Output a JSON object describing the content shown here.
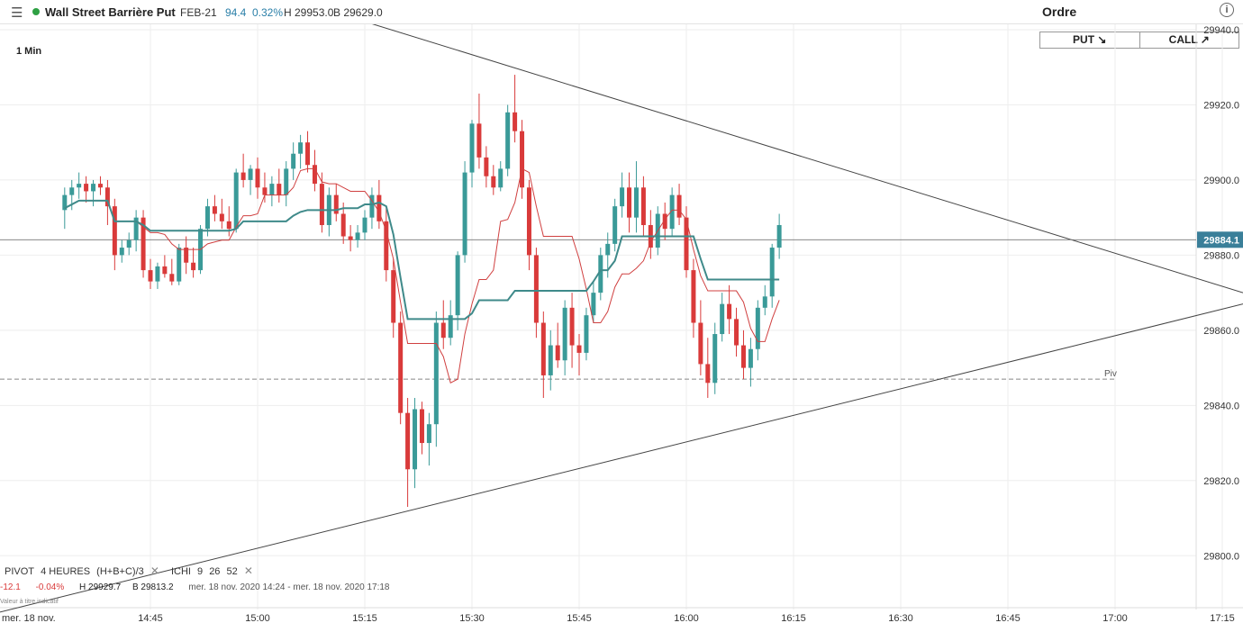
{
  "header": {
    "menu_icon": "☰",
    "instrument": "Wall Street Barrière Put",
    "expiry": "FEB-21",
    "price": "94.4",
    "change_pct": "0.32%",
    "high": "H 29953.0",
    "low": "B 29629.0",
    "order_label": "Ordre",
    "info_icon": "i",
    "status_color": "#2ea043"
  },
  "buttons": {
    "put": "PUT ↘",
    "call": "CALL ↗"
  },
  "timeframe": "1 Min",
  "indicators": {
    "pivot_label": "PIVOT",
    "pivot_period": "4 HEURES",
    "pivot_formula": "(H+B+C)/3",
    "ichi_label": "ICHI",
    "ichi_params": [
      "9",
      "26",
      "52"
    ],
    "close_icon": "✕"
  },
  "status_line": {
    "change": "-12.1",
    "change_pct": "-0.04%",
    "high": "H 29929.7",
    "low": "B 29813.2",
    "range": "mer. 18 nov. 2020 14:24 - mer. 18 nov. 2020 17:18"
  },
  "bottom_hint": "Valeur à titre indicatif",
  "colors": {
    "up": "#3a9a98",
    "down": "#d93a3a",
    "cloud_red": "#f6cfd0",
    "cloud_green": "#d8eed6",
    "kijun": "#3f8a8a",
    "kumo_edge": "#f0b77c"
  },
  "chart_data": {
    "type": "candlestick",
    "date_label": "mer. 18 nov.",
    "x_ticks": [
      "14:45",
      "15:00",
      "15:15",
      "15:30",
      "15:45",
      "16:00",
      "16:15",
      "16:30",
      "16:45",
      "17:00",
      "17:15"
    ],
    "y_ticks": [
      "29800.0",
      "29820.0",
      "29840.0",
      "29860.0",
      "29880.0",
      "29900.0",
      "29920.0",
      "29940.0"
    ],
    "ylim": [
      29790,
      29940
    ],
    "current_price": "29884.1",
    "pivot": {
      "label": "Piv",
      "value": 29847
    },
    "candles": [
      {
        "t": "14:33",
        "o": 29892,
        "h": 29898,
        "l": 29887,
        "c": 29896
      },
      {
        "t": "14:34",
        "o": 29896,
        "h": 29900,
        "l": 29892,
        "c": 29898
      },
      {
        "t": "14:35",
        "o": 29898,
        "h": 29902,
        "l": 29895,
        "c": 29899
      },
      {
        "t": "14:36",
        "o": 29899,
        "h": 29901,
        "l": 29894,
        "c": 29897
      },
      {
        "t": "14:37",
        "o": 29897,
        "h": 29900,
        "l": 29893,
        "c": 29899
      },
      {
        "t": "14:38",
        "o": 29899,
        "h": 29901,
        "l": 29896,
        "c": 29898
      },
      {
        "t": "14:39",
        "o": 29898,
        "h": 29900,
        "l": 29888,
        "c": 29893
      },
      {
        "t": "14:40",
        "o": 29893,
        "h": 29895,
        "l": 29876,
        "c": 29880
      },
      {
        "t": "14:41",
        "o": 29880,
        "h": 29884,
        "l": 29878,
        "c": 29882
      },
      {
        "t": "14:42",
        "o": 29882,
        "h": 29886,
        "l": 29880,
        "c": 29884
      },
      {
        "t": "14:43",
        "o": 29884,
        "h": 29892,
        "l": 29881,
        "c": 29890
      },
      {
        "t": "14:44",
        "o": 29890,
        "h": 29892,
        "l": 29874,
        "c": 29876
      },
      {
        "t": "14:45",
        "o": 29876,
        "h": 29879,
        "l": 29871,
        "c": 29873
      },
      {
        "t": "14:46",
        "o": 29873,
        "h": 29878,
        "l": 29871,
        "c": 29877
      },
      {
        "t": "14:47",
        "o": 29877,
        "h": 29880,
        "l": 29874,
        "c": 29875
      },
      {
        "t": "14:48",
        "o": 29875,
        "h": 29879,
        "l": 29872,
        "c": 29873
      },
      {
        "t": "14:49",
        "o": 29873,
        "h": 29883,
        "l": 29872,
        "c": 29882
      },
      {
        "t": "14:50",
        "o": 29882,
        "h": 29885,
        "l": 29875,
        "c": 29878
      },
      {
        "t": "14:51",
        "o": 29878,
        "h": 29882,
        "l": 29874,
        "c": 29876
      },
      {
        "t": "14:52",
        "o": 29876,
        "h": 29888,
        "l": 29875,
        "c": 29887
      },
      {
        "t": "14:53",
        "o": 29887,
        "h": 29895,
        "l": 29885,
        "c": 29893
      },
      {
        "t": "14:54",
        "o": 29893,
        "h": 29896,
        "l": 29889,
        "c": 29891
      },
      {
        "t": "14:55",
        "o": 29891,
        "h": 29895,
        "l": 29887,
        "c": 29889
      },
      {
        "t": "14:56",
        "o": 29889,
        "h": 29893,
        "l": 29885,
        "c": 29887
      },
      {
        "t": "14:57",
        "o": 29887,
        "h": 29903,
        "l": 29886,
        "c": 29902
      },
      {
        "t": "14:58",
        "o": 29902,
        "h": 29907,
        "l": 29898,
        "c": 29900
      },
      {
        "t": "14:59",
        "o": 29900,
        "h": 29904,
        "l": 29896,
        "c": 29903
      },
      {
        "t": "15:00",
        "o": 29903,
        "h": 29906,
        "l": 29895,
        "c": 29898
      },
      {
        "t": "15:01",
        "o": 29898,
        "h": 29902,
        "l": 29894,
        "c": 29896
      },
      {
        "t": "15:02",
        "o": 29896,
        "h": 29901,
        "l": 29893,
        "c": 29899
      },
      {
        "t": "15:03",
        "o": 29899,
        "h": 29903,
        "l": 29894,
        "c": 29896
      },
      {
        "t": "15:04",
        "o": 29896,
        "h": 29905,
        "l": 29893,
        "c": 29903
      },
      {
        "t": "15:05",
        "o": 29903,
        "h": 29910,
        "l": 29900,
        "c": 29907
      },
      {
        "t": "15:06",
        "o": 29907,
        "h": 29912,
        "l": 29903,
        "c": 29910
      },
      {
        "t": "15:07",
        "o": 29910,
        "h": 29913,
        "l": 29902,
        "c": 29904
      },
      {
        "t": "15:08",
        "o": 29904,
        "h": 29908,
        "l": 29897,
        "c": 29899
      },
      {
        "t": "15:09",
        "o": 29899,
        "h": 29902,
        "l": 29886,
        "c": 29888
      },
      {
        "t": "15:10",
        "o": 29888,
        "h": 29898,
        "l": 29885,
        "c": 29896
      },
      {
        "t": "15:11",
        "o": 29896,
        "h": 29899,
        "l": 29889,
        "c": 29891
      },
      {
        "t": "15:12",
        "o": 29891,
        "h": 29894,
        "l": 29883,
        "c": 29885
      },
      {
        "t": "15:13",
        "o": 29885,
        "h": 29888,
        "l": 29881,
        "c": 29884
      },
      {
        "t": "15:14",
        "o": 29884,
        "h": 29888,
        "l": 29882,
        "c": 29886
      },
      {
        "t": "15:15",
        "o": 29886,
        "h": 29892,
        "l": 29884,
        "c": 29890
      },
      {
        "t": "15:16",
        "o": 29890,
        "h": 29898,
        "l": 29887,
        "c": 29896
      },
      {
        "t": "15:17",
        "o": 29896,
        "h": 29900,
        "l": 29887,
        "c": 29889
      },
      {
        "t": "15:18",
        "o": 29889,
        "h": 29893,
        "l": 29873,
        "c": 29876
      },
      {
        "t": "15:19",
        "o": 29876,
        "h": 29879,
        "l": 29858,
        "c": 29862
      },
      {
        "t": "15:20",
        "o": 29862,
        "h": 29865,
        "l": 29835,
        "c": 29838
      },
      {
        "t": "15:21",
        "o": 29838,
        "h": 29842,
        "l": 29813,
        "c": 29823
      },
      {
        "t": "15:22",
        "o": 29823,
        "h": 29842,
        "l": 29818,
        "c": 29839
      },
      {
        "t": "15:23",
        "o": 29839,
        "h": 29841,
        "l": 29827,
        "c": 29830
      },
      {
        "t": "15:24",
        "o": 29830,
        "h": 29838,
        "l": 29824,
        "c": 29835
      },
      {
        "t": "15:25",
        "o": 29835,
        "h": 29865,
        "l": 29829,
        "c": 29862
      },
      {
        "t": "15:26",
        "o": 29862,
        "h": 29868,
        "l": 29855,
        "c": 29858
      },
      {
        "t": "15:27",
        "o": 29858,
        "h": 29868,
        "l": 29856,
        "c": 29864
      },
      {
        "t": "15:28",
        "o": 29864,
        "h": 29881,
        "l": 29860,
        "c": 29880
      },
      {
        "t": "15:29",
        "o": 29880,
        "h": 29905,
        "l": 29878,
        "c": 29902
      },
      {
        "t": "15:30",
        "o": 29902,
        "h": 29916,
        "l": 29898,
        "c": 29915
      },
      {
        "t": "15:31",
        "o": 29915,
        "h": 29923,
        "l": 29903,
        "c": 29906
      },
      {
        "t": "15:32",
        "o": 29906,
        "h": 29909,
        "l": 29898,
        "c": 29901
      },
      {
        "t": "15:33",
        "o": 29901,
        "h": 29904,
        "l": 29896,
        "c": 29898
      },
      {
        "t": "15:34",
        "o": 29898,
        "h": 29905,
        "l": 29897,
        "c": 29903
      },
      {
        "t": "15:35",
        "o": 29903,
        "h": 29920,
        "l": 29901,
        "c": 29918
      },
      {
        "t": "15:36",
        "o": 29918,
        "h": 29928,
        "l": 29910,
        "c": 29913
      },
      {
        "t": "15:37",
        "o": 29913,
        "h": 29916,
        "l": 29895,
        "c": 29898
      },
      {
        "t": "15:38",
        "o": 29898,
        "h": 29900,
        "l": 29876,
        "c": 29880
      },
      {
        "t": "15:39",
        "o": 29880,
        "h": 29882,
        "l": 29858,
        "c": 29862
      },
      {
        "t": "15:40",
        "o": 29862,
        "h": 29865,
        "l": 29842,
        "c": 29848
      },
      {
        "t": "15:41",
        "o": 29848,
        "h": 29860,
        "l": 29844,
        "c": 29856
      },
      {
        "t": "15:42",
        "o": 29856,
        "h": 29862,
        "l": 29850,
        "c": 29852
      },
      {
        "t": "15:43",
        "o": 29852,
        "h": 29868,
        "l": 29848,
        "c": 29866
      },
      {
        "t": "15:44",
        "o": 29866,
        "h": 29870,
        "l": 29850,
        "c": 29856
      },
      {
        "t": "15:45",
        "o": 29856,
        "h": 29859,
        "l": 29848,
        "c": 29854
      },
      {
        "t": "15:46",
        "o": 29854,
        "h": 29866,
        "l": 29852,
        "c": 29864
      },
      {
        "t": "15:47",
        "o": 29864,
        "h": 29873,
        "l": 29862,
        "c": 29870
      },
      {
        "t": "15:48",
        "o": 29870,
        "h": 29882,
        "l": 29868,
        "c": 29880
      },
      {
        "t": "15:49",
        "o": 29880,
        "h": 29886,
        "l": 29874,
        "c": 29883
      },
      {
        "t": "15:50",
        "o": 29883,
        "h": 29895,
        "l": 29881,
        "c": 29893
      },
      {
        "t": "15:51",
        "o": 29893,
        "h": 29902,
        "l": 29890,
        "c": 29898
      },
      {
        "t": "15:52",
        "o": 29898,
        "h": 29902,
        "l": 29886,
        "c": 29890
      },
      {
        "t": "15:53",
        "o": 29890,
        "h": 29905,
        "l": 29886,
        "c": 29898
      },
      {
        "t": "15:54",
        "o": 29898,
        "h": 29901,
        "l": 29885,
        "c": 29888
      },
      {
        "t": "15:55",
        "o": 29888,
        "h": 29892,
        "l": 29879,
        "c": 29882
      },
      {
        "t": "15:56",
        "o": 29882,
        "h": 29893,
        "l": 29880,
        "c": 29891
      },
      {
        "t": "15:57",
        "o": 29891,
        "h": 29894,
        "l": 29884,
        "c": 29887
      },
      {
        "t": "15:58",
        "o": 29887,
        "h": 29898,
        "l": 29885,
        "c": 29896
      },
      {
        "t": "15:59",
        "o": 29896,
        "h": 29899,
        "l": 29888,
        "c": 29890
      },
      {
        "t": "16:00",
        "o": 29890,
        "h": 29893,
        "l": 29874,
        "c": 29876
      },
      {
        "t": "16:01",
        "o": 29876,
        "h": 29879,
        "l": 29858,
        "c": 29862
      },
      {
        "t": "16:02",
        "o": 29862,
        "h": 29868,
        "l": 29848,
        "c": 29851
      },
      {
        "t": "16:03",
        "o": 29851,
        "h": 29858,
        "l": 29842,
        "c": 29846
      },
      {
        "t": "16:04",
        "o": 29846,
        "h": 29862,
        "l": 29843,
        "c": 29859
      },
      {
        "t": "16:05",
        "o": 29859,
        "h": 29870,
        "l": 29857,
        "c": 29867
      },
      {
        "t": "16:06",
        "o": 29867,
        "h": 29872,
        "l": 29859,
        "c": 29863
      },
      {
        "t": "16:07",
        "o": 29863,
        "h": 29866,
        "l": 29853,
        "c": 29856
      },
      {
        "t": "16:08",
        "o": 29856,
        "h": 29860,
        "l": 29847,
        "c": 29850
      },
      {
        "t": "16:09",
        "o": 29850,
        "h": 29858,
        "l": 29845,
        "c": 29855
      },
      {
        "t": "16:10",
        "o": 29855,
        "h": 29868,
        "l": 29852,
        "c": 29866
      },
      {
        "t": "16:11",
        "o": 29866,
        "h": 29872,
        "l": 29864,
        "c": 29869
      },
      {
        "t": "16:12",
        "o": 29869,
        "h": 29883,
        "l": 29866,
        "c": 29882
      },
      {
        "t": "16:13",
        "o": 29882,
        "h": 29891,
        "l": 29879,
        "c": 29888
      }
    ],
    "lines": [
      {
        "name": "tenkan",
        "points": [
          [
            29893,
            29895
          ],
          [
            29889,
            29886
          ],
          [
            29883,
            29883
          ]
        ]
      }
    ]
  }
}
